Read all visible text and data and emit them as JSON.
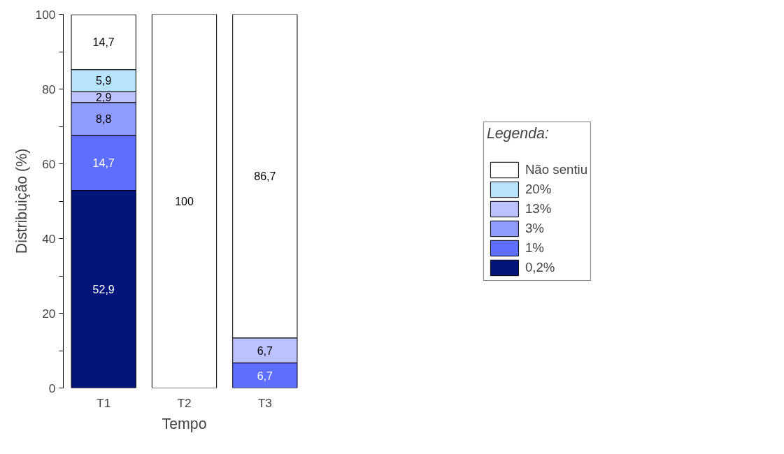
{
  "chart_data": {
    "type": "bar",
    "stacked": true,
    "xlabel": "Tempo",
    "ylabel": "Distribuição (%)",
    "legend_title": "Legenda:",
    "legend": "right",
    "grid": false,
    "categories": [
      "T1",
      "T2",
      "T3"
    ],
    "ylim": [
      0,
      100
    ],
    "yticks": [
      0,
      {
        "value": 10,
        "label": null
      },
      20,
      {
        "value": 30,
        "label": null
      },
      40,
      {
        "value": 50,
        "label": null
      },
      60,
      {
        "value": 70,
        "label": null
      },
      80,
      {
        "value": 90,
        "label": null
      },
      100
    ],
    "series": [
      {
        "name": "0,2%",
        "color": "#02137a",
        "values": [
          52.9,
          null,
          null
        ],
        "value_labels": [
          "52,9",
          null,
          null
        ]
      },
      {
        "name": "1%",
        "color": "#5e6eff",
        "values": [
          14.7,
          null,
          6.7
        ],
        "value_labels": [
          "14,7",
          null,
          "6,7"
        ]
      },
      {
        "name": "3%",
        "color": "#8f9bff",
        "values": [
          8.8,
          null,
          null
        ],
        "value_labels": [
          "8,8",
          null,
          null
        ]
      },
      {
        "name": "13%",
        "color": "#bcc2ff",
        "values": [
          2.9,
          null,
          6.7
        ],
        "value_labels": [
          "2,9",
          null,
          "6,7"
        ]
      },
      {
        "name": "20%",
        "color": "#b8e4fb",
        "values": [
          5.9,
          null,
          null
        ],
        "value_labels": [
          "5,9",
          null,
          null
        ]
      },
      {
        "name": "Não sentiu",
        "color": "#ffffff",
        "values": [
          14.7,
          100,
          86.7
        ],
        "value_labels": [
          "14,7",
          "100",
          "86,7"
        ]
      }
    ]
  }
}
